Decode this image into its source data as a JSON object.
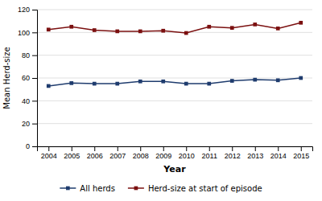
{
  "chart_data": {
    "type": "line",
    "x": [
      2004,
      2005,
      2006,
      2007,
      2008,
      2009,
      2010,
      2011,
      2012,
      2013,
      2014,
      2015
    ],
    "series": [
      {
        "name": "All herds",
        "color": "#1F3C6E",
        "values": [
          53,
          55.5,
          55,
          55,
          57,
          57,
          55,
          55,
          57.5,
          58.5,
          58,
          60
        ]
      },
      {
        "name": "Herd-size at start of episode",
        "color": "#7B1010",
        "values": [
          102.5,
          105,
          102,
          101,
          101,
          101.5,
          99.5,
          105,
          104,
          107,
          103.5,
          108.5
        ]
      }
    ],
    "xlabel": "Year",
    "ylabel": "Mean Herd-size",
    "xlim": [
      2003.5,
      2015.5
    ],
    "xticks": [
      2004,
      2005,
      2006,
      2007,
      2008,
      2009,
      2010,
      2011,
      2012,
      2013,
      2014,
      2015
    ],
    "ylim": [
      0,
      120
    ],
    "yticks": [
      0,
      20,
      40,
      60,
      80,
      100,
      120
    ],
    "grid": true,
    "legend": "bottom",
    "marker": "square"
  }
}
